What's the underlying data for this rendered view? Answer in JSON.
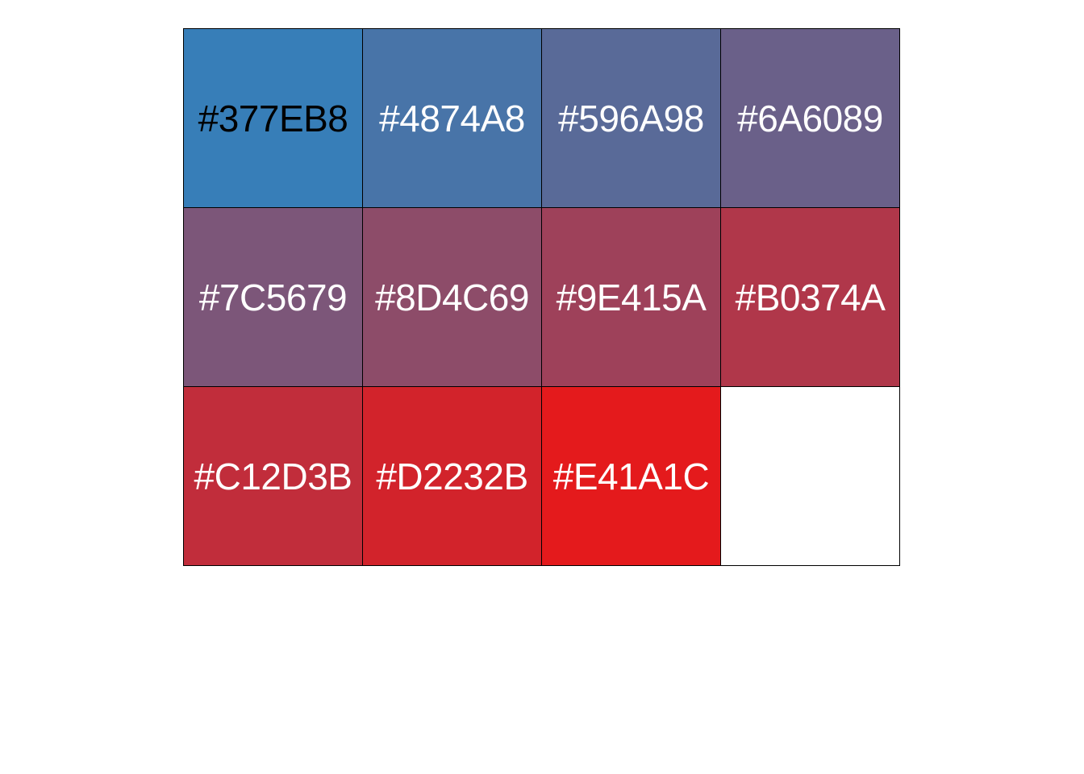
{
  "chart_data": {
    "type": "table",
    "columns": 4,
    "rows": 3,
    "cells": [
      {
        "label": "#377EB8",
        "color": "#377EB8",
        "text_color": "#000000"
      },
      {
        "label": "#4874A8",
        "color": "#4874A8",
        "text_color": "#FFFFFF"
      },
      {
        "label": "#596A98",
        "color": "#596A98",
        "text_color": "#FFFFFF"
      },
      {
        "label": "#6A6089",
        "color": "#6A6089",
        "text_color": "#FFFFFF"
      },
      {
        "label": "#7C5679",
        "color": "#7C5679",
        "text_color": "#FFFFFF"
      },
      {
        "label": "#8D4C69",
        "color": "#8D4C69",
        "text_color": "#FFFFFF"
      },
      {
        "label": "#9E415A",
        "color": "#9E415A",
        "text_color": "#FFFFFF"
      },
      {
        "label": "#B0374A",
        "color": "#B0374A",
        "text_color": "#FFFFFF"
      },
      {
        "label": "#C12D3B",
        "color": "#C12D3B",
        "text_color": "#FFFFFF"
      },
      {
        "label": "#D2232B",
        "color": "#D2232B",
        "text_color": "#FFFFFF"
      },
      {
        "label": "#E41A1C",
        "color": "#E41A1C",
        "text_color": "#FFFFFF"
      },
      {
        "label": "",
        "color": "#FFFFFF",
        "text_color": "#FFFFFF"
      }
    ]
  }
}
